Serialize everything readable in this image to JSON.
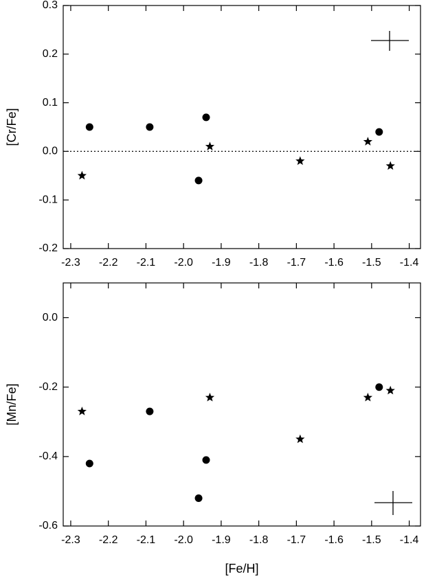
{
  "chart_data": [
    {
      "type": "scatter",
      "y_label": "[Cr/Fe]",
      "xlim": [
        -2.32,
        -1.37
      ],
      "ylim": [
        -0.2,
        0.3
      ],
      "xticks": [
        -2.3,
        -2.2,
        -2.1,
        {
          "value": -2.0,
          "label": "-2.0"
        },
        -1.9,
        -1.8,
        -1.7,
        -1.6,
        -1.5,
        -1.4
      ],
      "yticks": [
        -0.2,
        -0.1,
        {
          "value": 0,
          "label": "0.0"
        },
        0.1,
        0.2,
        0.3
      ],
      "reference_line": 0,
      "series": [
        {
          "marker": "circle",
          "color": "#000000",
          "x": [
            -2.25,
            -2.09,
            -1.94,
            -1.96,
            -1.48
          ],
          "values": [
            0.05,
            0.05,
            0.07,
            -0.06,
            0.04
          ]
        },
        {
          "marker": "star",
          "color": "#000000",
          "x": [
            -2.27,
            -1.93,
            -1.69,
            -1.51,
            -1.45
          ],
          "values": [
            -0.05,
            0.01,
            -0.02,
            0.02,
            -0.03
          ]
        }
      ]
    },
    {
      "type": "scatter",
      "y_label": "[Mn/Fe]",
      "x_label": "[Fe/H]",
      "xlim": [
        -2.32,
        -1.37
      ],
      "ylim": [
        -0.6,
        0.1
      ],
      "xticks": [
        -2.3,
        -2.2,
        -2.1,
        {
          "value": -2.0,
          "label": "-2.0"
        },
        -1.9,
        -1.8,
        -1.7,
        -1.6,
        -1.5,
        -1.4
      ],
      "yticks": [
        -0.6,
        -0.4,
        -0.2,
        {
          "value": 0,
          "label": "0.0"
        }
      ],
      "series": [
        {
          "marker": "circle",
          "color": "#000000",
          "x": [
            -2.25,
            -2.09,
            -1.94,
            -1.96,
            -1.48
          ],
          "values": [
            -0.42,
            -0.27,
            -0.41,
            -0.52,
            -0.2
          ]
        },
        {
          "marker": "star",
          "color": "#000000",
          "x": [
            -2.27,
            -1.93,
            -1.69,
            -1.51,
            -1.45
          ],
          "values": [
            -0.27,
            -0.23,
            -0.35,
            -0.23,
            -0.21
          ]
        }
      ]
    }
  ]
}
